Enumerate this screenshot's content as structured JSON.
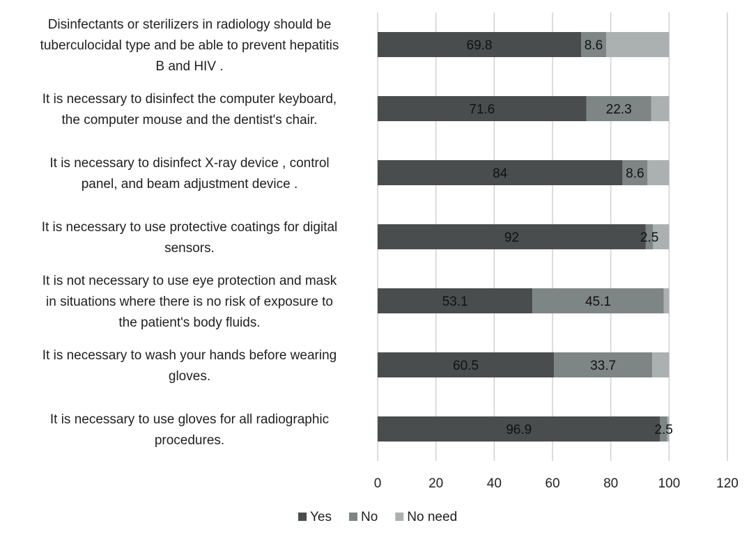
{
  "chart_data": {
    "type": "bar",
    "orientation": "horizontal",
    "stacked": true,
    "categories": [
      "Disinfectants or sterilizers in radiology should be tuberculocidal type and be able to prevent hepatitis B and HIV .",
      "It is necessary to disinfect  the computer keyboard, the computer mouse and the dentist's chair.",
      "It is necessary to disinfect  X-ray device ,  control panel, and  beam adjustment device .",
      "It is necessary to use protective coatings for digital sensors.",
      "It is not necessary to use eye protection and mask in situations where there is no risk of exposure to the patient's body fluids.",
      "It is necessary to wash your hands before wearing gloves.",
      "It is necessary to use gloves for all radiographic procedures."
    ],
    "category_lines": [
      [
        "Disinfectants or sterilizers in radiology should be",
        "tuberculocidal type and be able to prevent hepatitis",
        "B and HIV ."
      ],
      [
        "It is necessary to disinfect  the computer keyboard,",
        "the computer mouse and the dentist's chair."
      ],
      [
        "It is necessary to disinfect  X-ray device ,  control",
        "panel, and  beam adjustment device ."
      ],
      [
        "It is necessary to use protective coatings for digital",
        "sensors."
      ],
      [
        "It is not necessary to use eye protection and mask",
        "in situations where there is no risk of exposure to",
        "the patient's body fluids."
      ],
      [
        "It is necessary to wash your hands before wearing",
        "gloves."
      ],
      [
        "It is necessary to use gloves for all radiographic",
        "procedures."
      ]
    ],
    "series": [
      {
        "name": "Yes",
        "color": "#4a4d4d",
        "values": [
          69.8,
          71.6,
          84,
          92,
          53.1,
          60.5,
          96.9
        ],
        "labels": [
          "69.8",
          "71.6",
          "84",
          "92",
          "53.1",
          "60.5",
          "96.9"
        ]
      },
      {
        "name": "No",
        "color": "#7e8585",
        "values": [
          8.6,
          22.3,
          8.6,
          2.5,
          45.1,
          33.7,
          2.5
        ],
        "labels": [
          "8.6",
          "22.3",
          "8.6",
          "2.5",
          "45.1",
          "33.7",
          "2.5"
        ]
      },
      {
        "name": "No need",
        "color": "#abb1b1",
        "values": [
          21.6,
          6.1,
          7.4,
          5.5,
          1.8,
          5.8,
          0.6
        ],
        "labels": [
          "",
          "",
          "",
          "",
          "",
          "",
          ""
        ]
      }
    ],
    "xlim": [
      0,
      120
    ],
    "xticks": [
      0,
      20,
      40,
      60,
      80,
      100,
      120
    ],
    "grid": true,
    "legend_position": "bottom",
    "title": "",
    "xlabel": "",
    "ylabel": ""
  }
}
